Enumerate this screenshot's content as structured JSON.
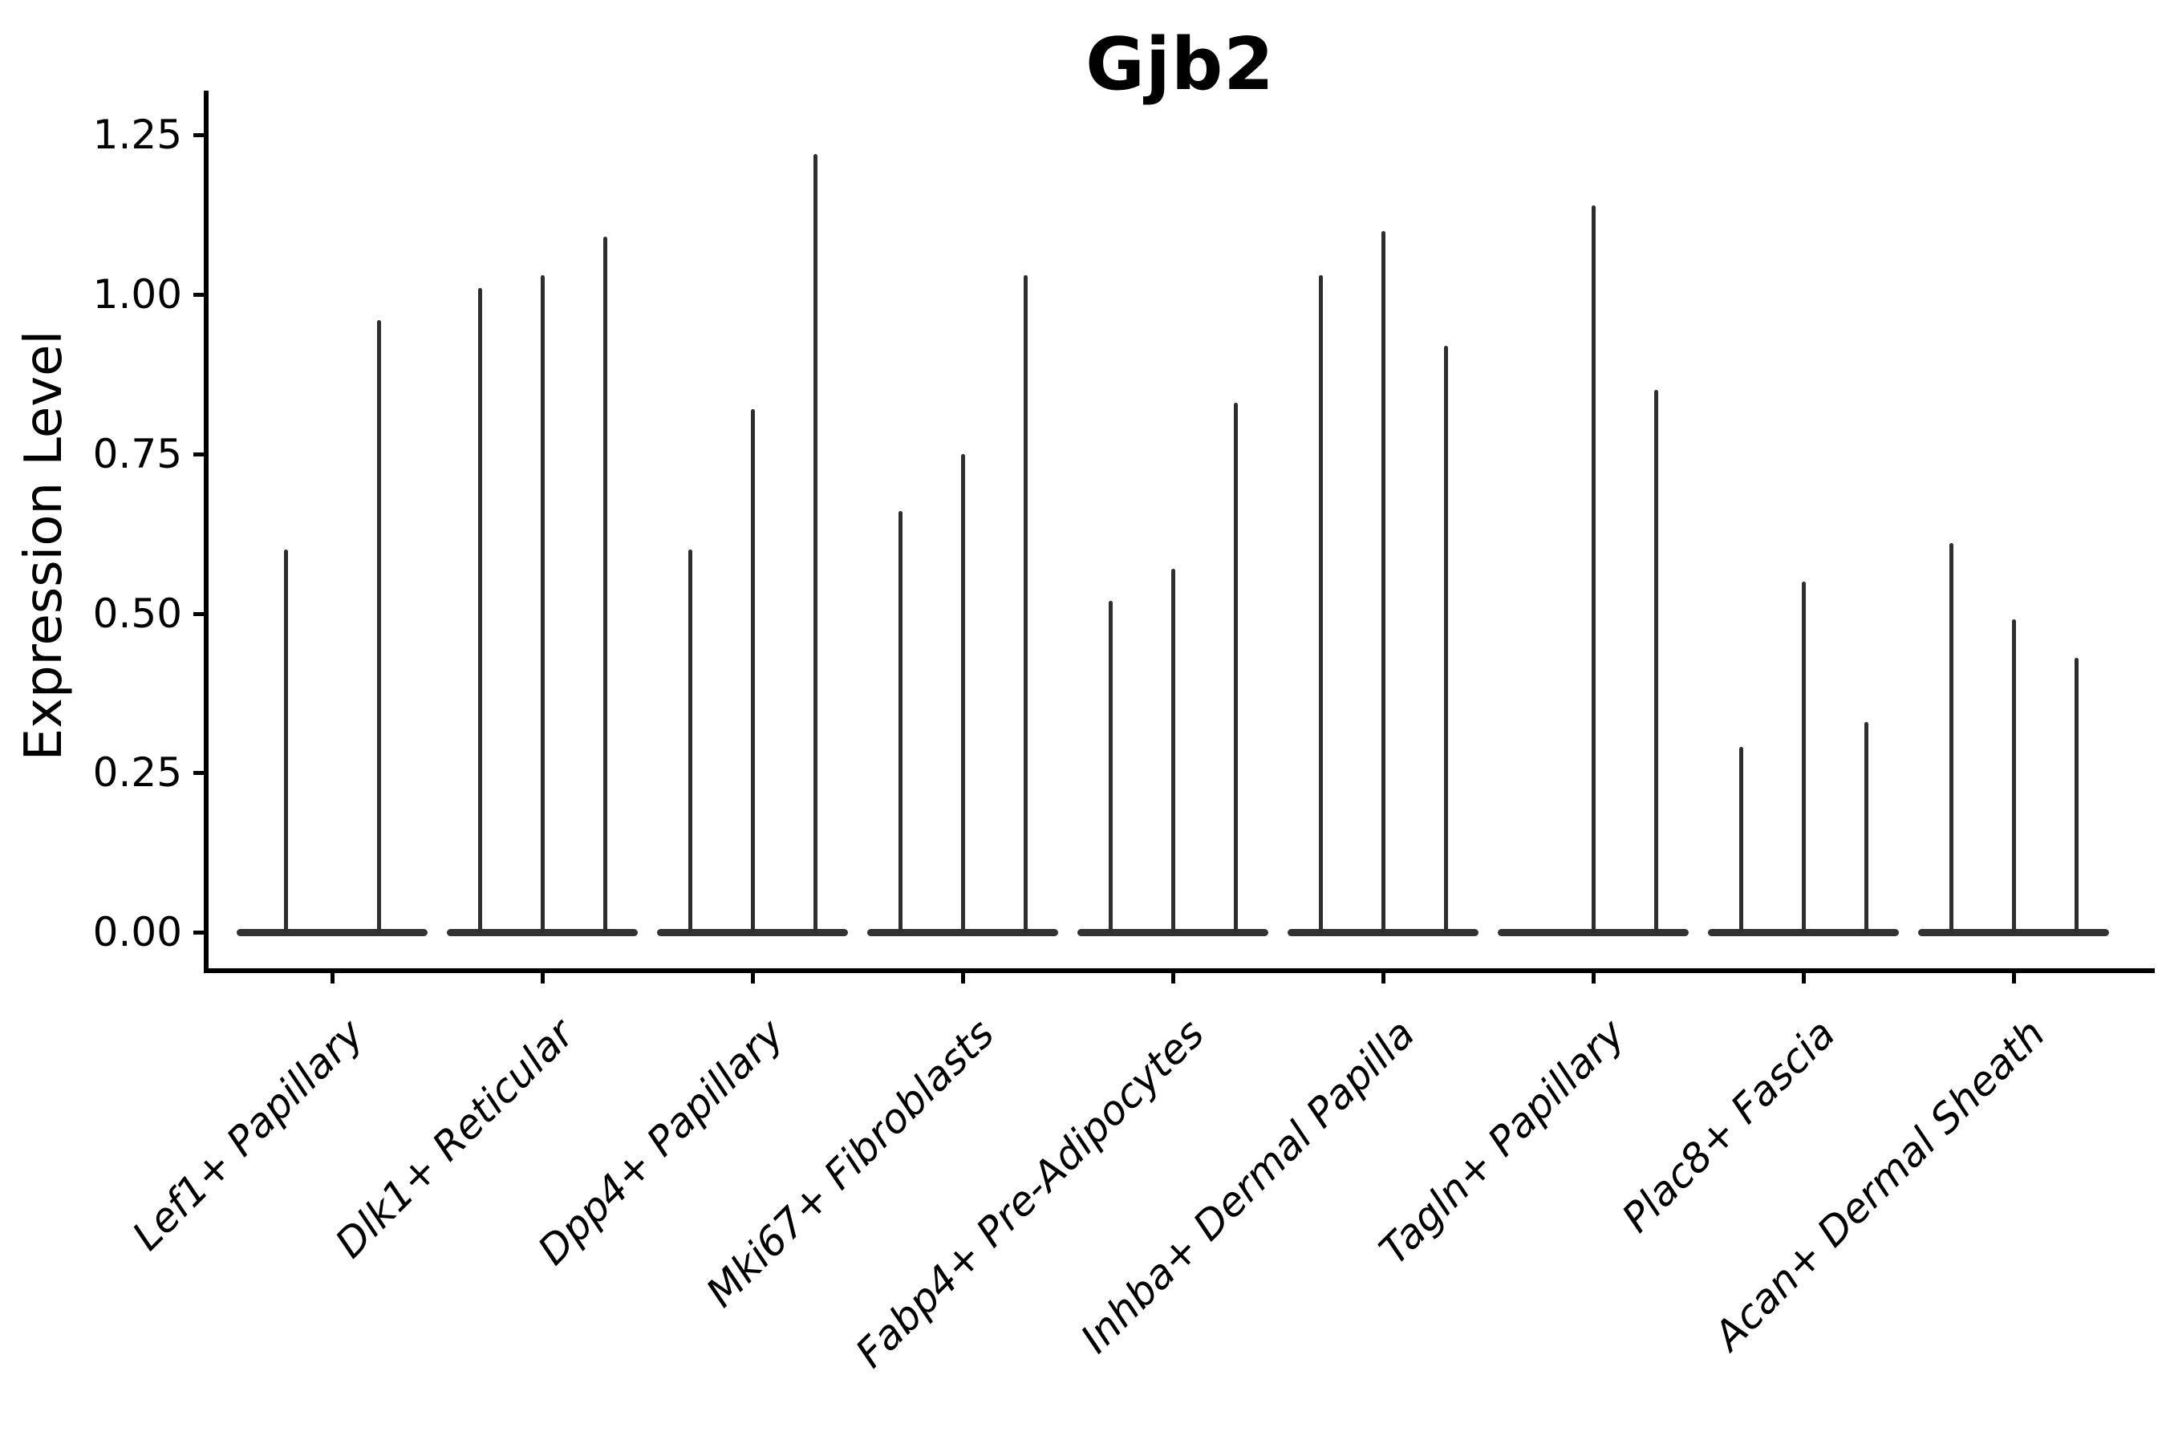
{
  "title": "Gjb2",
  "y_axis": {
    "label": "Expression Level"
  },
  "chart_data": {
    "type": "violin",
    "title": "Gjb2",
    "xlabel": "",
    "ylabel": "Expression Level",
    "ylim": [
      0,
      1.25
    ],
    "grid": false,
    "legend": "none",
    "yticks": [
      {
        "label": "1.25",
        "value": 1.25
      },
      {
        "label": "1.00",
        "value": 1.0
      },
      {
        "label": "0.75",
        "value": 0.75
      },
      {
        "label": "0.50",
        "value": 0.5
      },
      {
        "label": "0.25",
        "value": 0.25
      },
      {
        "label": "0.00",
        "value": 0.0
      }
    ],
    "violin_color": "#2e2e2e",
    "note": "Each category shows narrow spike-shaped violins (expression concentrated at 0 with thin tails); values below are the max expression reached by each violin spike, left to right within the category.",
    "groups": [
      {
        "label": "Lef1+ Papillary",
        "violin_max": [
          0.6,
          0.96
        ]
      },
      {
        "label": "Dlk1+ Reticular",
        "violin_max": [
          1.01,
          1.03,
          1.09
        ]
      },
      {
        "label": "Dpp4+ Papillary",
        "violin_max": [
          0.6,
          0.82,
          1.22
        ]
      },
      {
        "label": "Mki67+ Fibroblasts",
        "violin_max": [
          0.66,
          0.75,
          1.03
        ]
      },
      {
        "label": "Fabp4+ Pre-Adipocytes",
        "violin_max": [
          0.52,
          0.57,
          0.83
        ]
      },
      {
        "label": "Inhba+ Dermal Papilla",
        "violin_max": [
          1.03,
          1.1,
          0.92
        ]
      },
      {
        "label": "Tagln+ Papillary",
        "violin_max": [
          0.0,
          1.14,
          0.85
        ]
      },
      {
        "label": "Plac8+ Fascia",
        "violin_max": [
          0.29,
          0.55,
          0.33
        ]
      },
      {
        "label": "Acan+ Dermal Sheath",
        "violin_max": [
          0.61,
          0.49,
          0.43
        ]
      }
    ]
  }
}
